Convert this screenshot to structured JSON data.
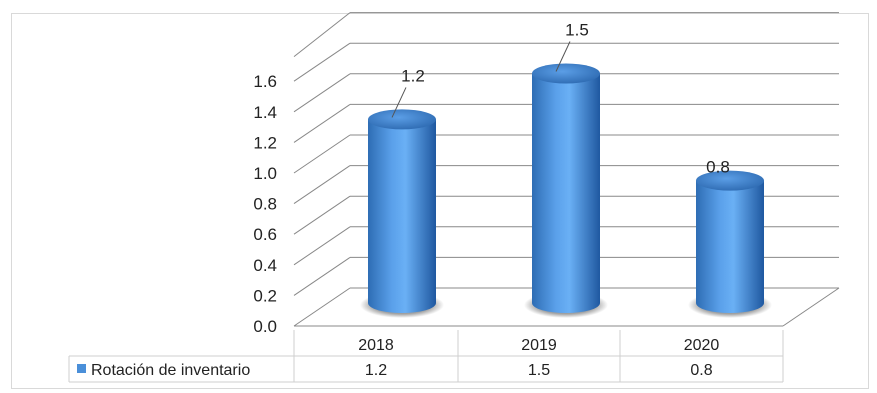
{
  "chart_data": {
    "type": "bar",
    "style": "3d-cylinder",
    "categories": [
      "2018",
      "2019",
      "2020"
    ],
    "series": [
      {
        "name": "Rotación de inventario",
        "values": [
          1.2,
          1.5,
          0.8
        ],
        "color": "#4a8fd9"
      }
    ],
    "data_labels": [
      "1.2",
      "1.5",
      "0.8"
    ],
    "ylim": [
      0,
      1.6
    ],
    "yticks": [
      "0.0",
      "0.2",
      "0.4",
      "0.6",
      "0.8",
      "1.0",
      "1.2",
      "1.4",
      "1.6"
    ],
    "grid": true,
    "legend": "data-table",
    "data_table": {
      "row_label": "Rotación de inventario",
      "values": [
        "1.2",
        "1.5",
        "0.8"
      ]
    }
  }
}
